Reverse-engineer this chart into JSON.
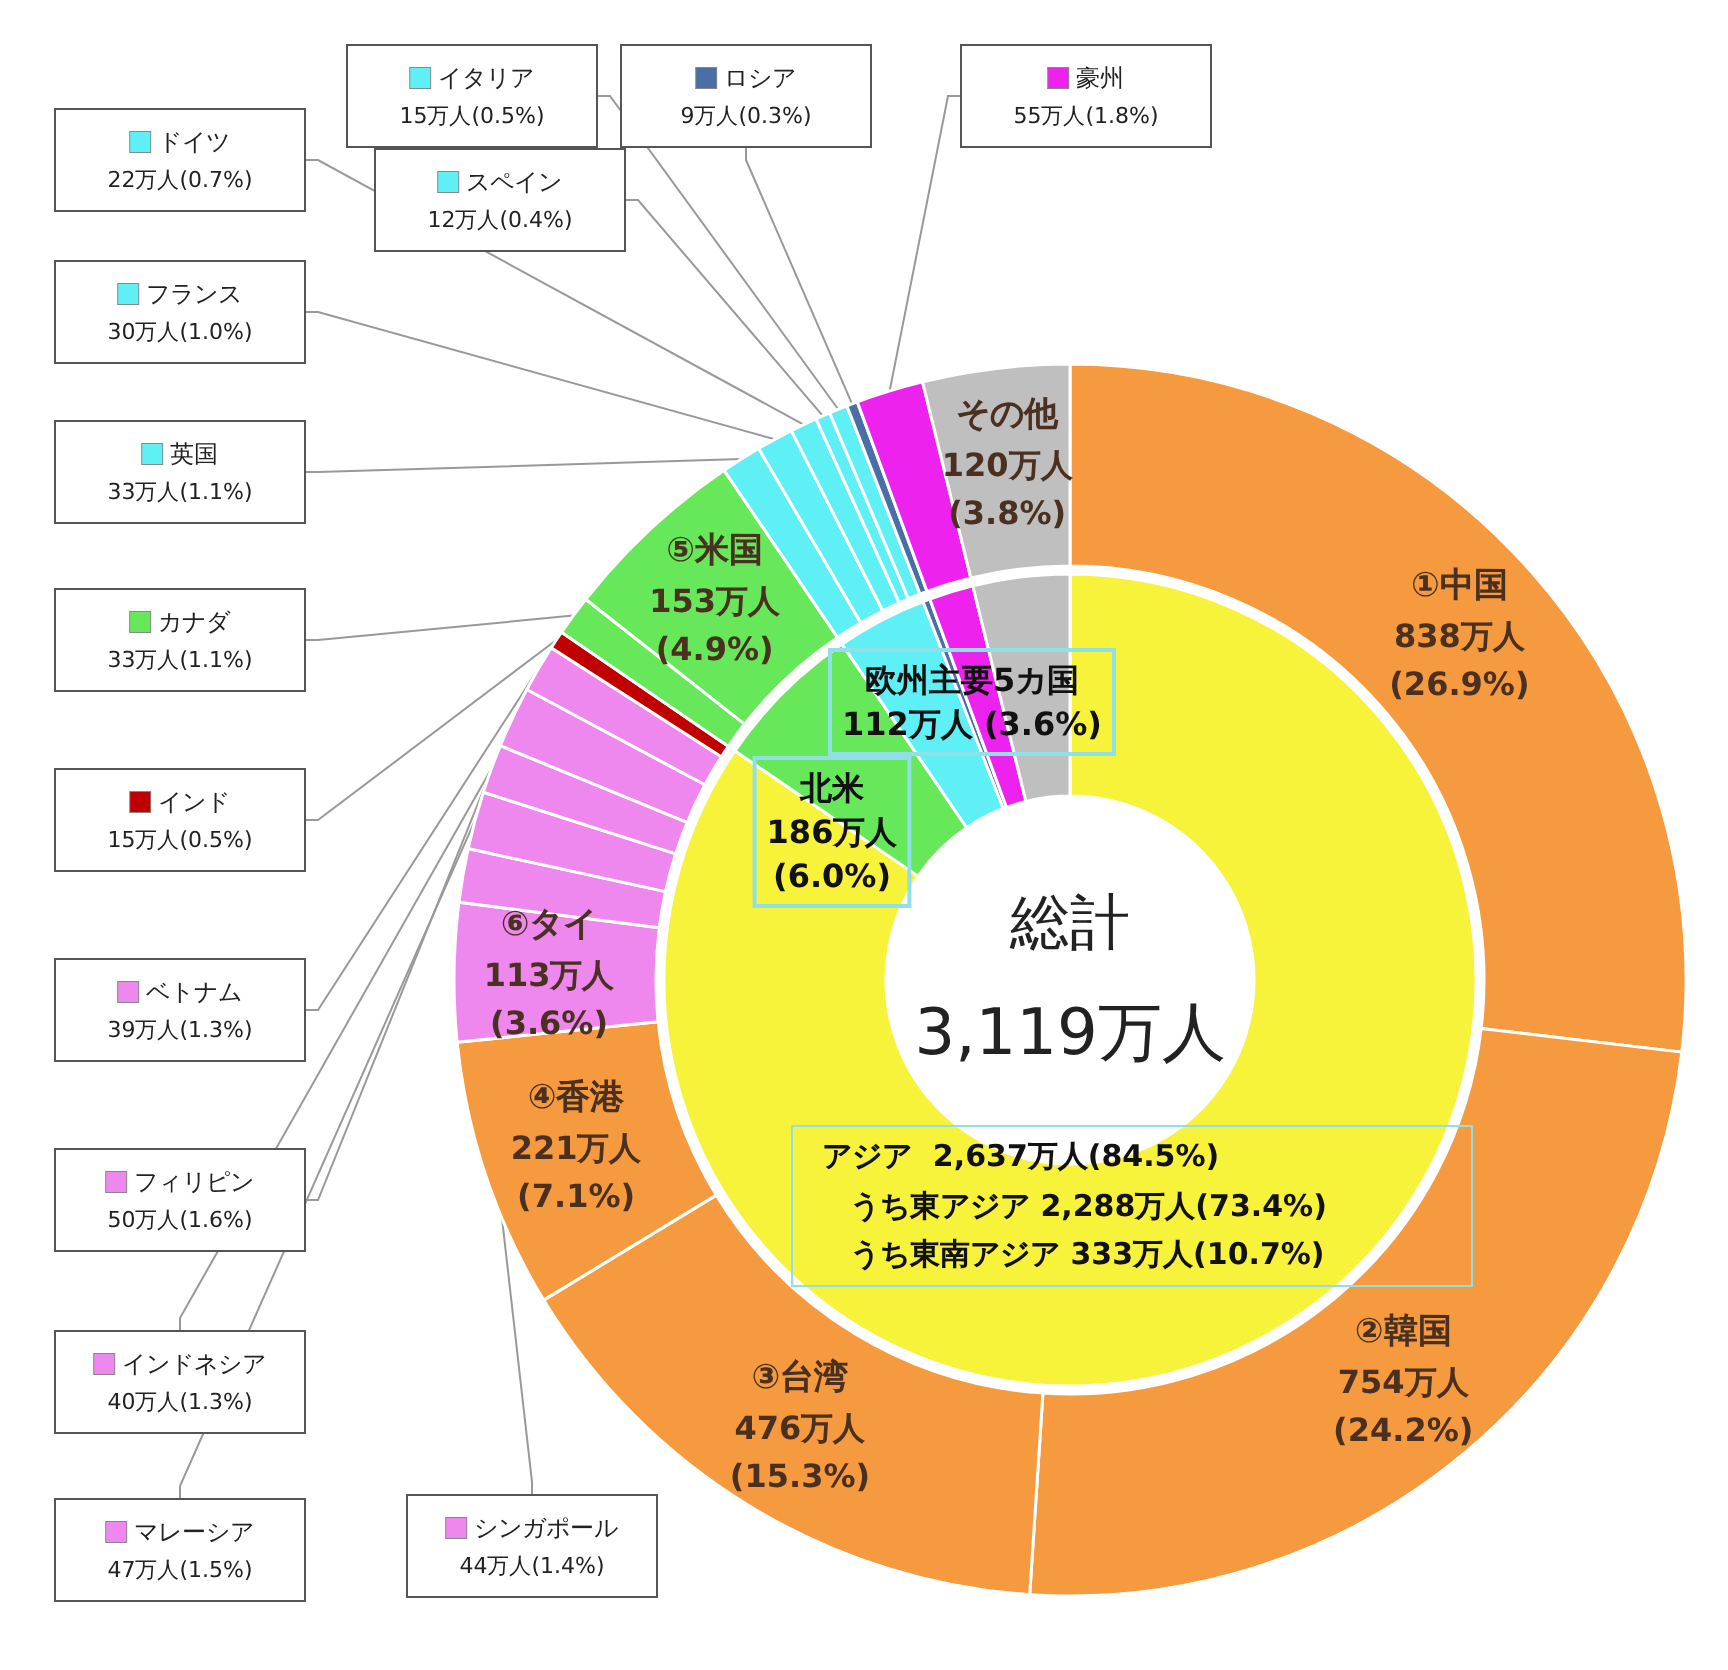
{
  "chart_data": [
    {
      "type": "donut",
      "legend": "left",
      "categories": [
        "①中国",
        "②韓国",
        "③台湾",
        "④香港",
        "⑥タイ",
        "シンガポール",
        "マレーシア",
        "インドネシア",
        "フィリピン",
        "ベトナム",
        "インド",
        "カナダ",
        "⑤米国",
        "英国",
        "フランス",
        "ドイツ",
        "スペイン",
        "イタリア",
        "ロシア",
        "豪州",
        "その他"
      ],
      "values": [
        838,
        754,
        476,
        221,
        113,
        44,
        47,
        40,
        50,
        39,
        15,
        33,
        153,
        33,
        30,
        22,
        12,
        15,
        9,
        55,
        120
      ],
      "colors": [
        "#f59a3e",
        "#f59a3e",
        "#f59a3e",
        "#f59a3e",
        "#ee88ee",
        "#ee88ee",
        "#ee88ee",
        "#ee88ee",
        "#ee88ee",
        "#ee88ee",
        "#c00000",
        "#66e85a",
        "#66e85a",
        "#5ef0f5",
        "#5ef0f5",
        "#5ef0f5",
        "#5ef0f5",
        "#5ef0f5",
        "#4a6fa5",
        "#ee22ee",
        "#bfbfbf"
      ],
      "value_labels": [
        "838万人\n(26.9%)",
        "754万人\n(24.2%)",
        "476万人\n(15.3%)",
        "221万人\n(7.1%)",
        "113万人\n(3.6%)",
        "44万人(1.4%)",
        "47万人(1.5%)",
        "40万人(1.3%)",
        "50万人(1.6%)",
        "39万人(1.3%)",
        "15万人(0.5%)",
        "33万人(1.1%)",
        "153万人\n(4.9%)",
        "33万人(1.1%)",
        "30万人(1.0%)",
        "22万人(0.7%)",
        "12万人(0.4%)",
        "15万人(0.5%)",
        "9万人(0.3%)",
        "55万人(1.8%)",
        "120万人\n(3.8%)"
      ]
    },
    {
      "type": "donut",
      "title": "総計",
      "subtitle": "3,119万人",
      "annotations": [
        "うち東アジア 2,288万人(73.4%)",
        "うち東南アジア 333万人(10.7%)"
      ],
      "categories": [
        "アジア",
        "北米",
        "欧州主要5カ国",
        null,
        null,
        null
      ],
      "values": [
        2637,
        186,
        112,
        9,
        55,
        120
      ],
      "colors": [
        "#f7f23a",
        "#66e85a",
        "#5ef0f5",
        "#4a6fa5",
        "#ee22ee",
        "#bfbfbf"
      ],
      "value_labels": [
        "2,637万人(84.5%)",
        "186万人\n(6.0%)",
        "112万人 (3.6%)",
        null,
        null,
        null
      ]
    }
  ]
}
